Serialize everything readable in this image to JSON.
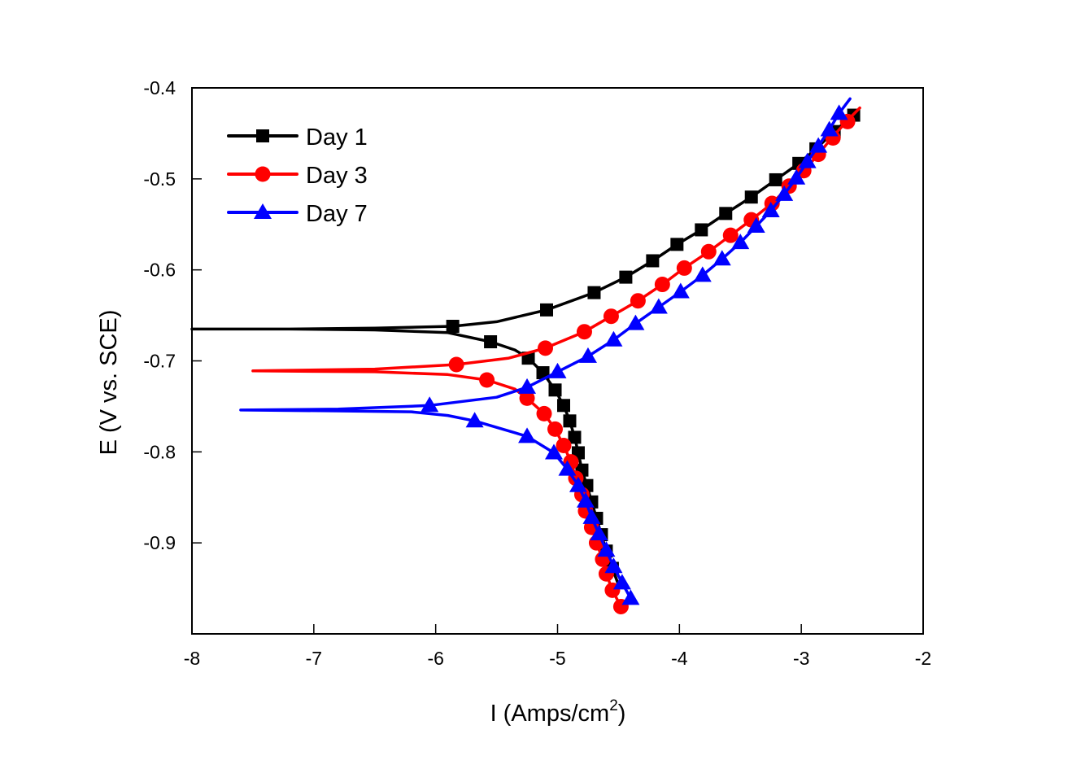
{
  "chart_data": {
    "type": "line",
    "title": "",
    "xlabel": "I (Amps/cm",
    "xlabel_superscript": "2",
    "xlabel_suffix": ")",
    "ylabel": "E (V vs. SCE)",
    "xlim": [
      -8,
      -2
    ],
    "ylim": [
      -1.0,
      -0.4
    ],
    "xticks": [
      -8,
      -7,
      -6,
      -5,
      -4,
      -3,
      -2
    ],
    "xtick_labels": [
      "-8",
      "-7",
      "-6",
      "-5",
      "-4",
      "-3",
      "-2"
    ],
    "yticks": [
      -0.4,
      -0.5,
      -0.6,
      -0.7,
      -0.8,
      -0.9
    ],
    "ytick_labels": [
      "-0.4",
      "-0.5",
      "-0.6",
      "-0.7",
      "-0.8",
      "-0.9"
    ],
    "grid": false,
    "legend_position": "top-left",
    "series": [
      {
        "name": "Day 1",
        "color": "#000000",
        "marker": "square",
        "line": [
          [
            -2.55,
            -0.427
          ],
          [
            -2.73,
            -0.448
          ],
          [
            -2.88,
            -0.467
          ],
          [
            -3.02,
            -0.483
          ],
          [
            -3.21,
            -0.501
          ],
          [
            -3.41,
            -0.52
          ],
          [
            -3.62,
            -0.538
          ],
          [
            -3.82,
            -0.556
          ],
          [
            -4.02,
            -0.572
          ],
          [
            -4.22,
            -0.59
          ],
          [
            -4.44,
            -0.608
          ],
          [
            -4.7,
            -0.625
          ],
          [
            -5.09,
            -0.644
          ],
          [
            -5.5,
            -0.657
          ],
          [
            -5.86,
            -0.662
          ],
          [
            -6.5,
            -0.664
          ],
          [
            -7.2,
            -0.665
          ],
          [
            -8.0,
            -0.665
          ],
          [
            -7.2,
            -0.665
          ],
          [
            -6.5,
            -0.666
          ],
          [
            -5.9,
            -0.669
          ],
          [
            -5.55,
            -0.679
          ],
          [
            -5.35,
            -0.688
          ],
          [
            -5.24,
            -0.697
          ],
          [
            -5.12,
            -0.713
          ],
          [
            -5.02,
            -0.732
          ],
          [
            -4.95,
            -0.749
          ],
          [
            -4.9,
            -0.766
          ],
          [
            -4.86,
            -0.784
          ],
          [
            -4.83,
            -0.801
          ],
          [
            -4.8,
            -0.82
          ],
          [
            -4.76,
            -0.837
          ],
          [
            -4.72,
            -0.855
          ],
          [
            -4.68,
            -0.873
          ],
          [
            -4.64,
            -0.891
          ],
          [
            -4.6,
            -0.909
          ],
          [
            -4.55,
            -0.928
          ],
          [
            -4.5,
            -0.946
          ]
        ],
        "markers": [
          [
            -2.57,
            -0.43
          ],
          [
            -2.73,
            -0.448
          ],
          [
            -2.88,
            -0.467
          ],
          [
            -3.02,
            -0.483
          ],
          [
            -3.21,
            -0.501
          ],
          [
            -3.41,
            -0.52
          ],
          [
            -3.62,
            -0.538
          ],
          [
            -3.82,
            -0.556
          ],
          [
            -4.02,
            -0.572
          ],
          [
            -4.22,
            -0.59
          ],
          [
            -4.44,
            -0.608
          ],
          [
            -4.7,
            -0.625
          ],
          [
            -5.09,
            -0.644
          ],
          [
            -5.86,
            -0.662
          ],
          [
            -5.55,
            -0.679
          ],
          [
            -5.24,
            -0.697
          ],
          [
            -5.12,
            -0.713
          ],
          [
            -5.02,
            -0.732
          ],
          [
            -4.95,
            -0.749
          ],
          [
            -4.9,
            -0.766
          ],
          [
            -4.86,
            -0.784
          ],
          [
            -4.83,
            -0.801
          ],
          [
            -4.8,
            -0.82
          ],
          [
            -4.76,
            -0.837
          ],
          [
            -4.72,
            -0.855
          ],
          [
            -4.68,
            -0.873
          ],
          [
            -4.64,
            -0.891
          ],
          [
            -4.6,
            -0.909
          ],
          [
            -4.55,
            -0.928
          ]
        ]
      },
      {
        "name": "Day 3",
        "color": "#ff0000",
        "marker": "circle",
        "line": [
          [
            -2.52,
            -0.422
          ],
          [
            -2.63,
            -0.437
          ],
          [
            -2.75,
            -0.455
          ],
          [
            -2.86,
            -0.473
          ],
          [
            -2.98,
            -0.491
          ],
          [
            -3.1,
            -0.508
          ],
          [
            -3.24,
            -0.527
          ],
          [
            -3.41,
            -0.545
          ],
          [
            -3.58,
            -0.562
          ],
          [
            -3.76,
            -0.58
          ],
          [
            -3.96,
            -0.598
          ],
          [
            -4.14,
            -0.616
          ],
          [
            -4.34,
            -0.634
          ],
          [
            -4.56,
            -0.651
          ],
          [
            -4.78,
            -0.668
          ],
          [
            -5.1,
            -0.686
          ],
          [
            -5.4,
            -0.697
          ],
          [
            -5.83,
            -0.704
          ],
          [
            -6.5,
            -0.709
          ],
          [
            -7.5,
            -0.711
          ],
          [
            -6.5,
            -0.712
          ],
          [
            -5.9,
            -0.715
          ],
          [
            -5.58,
            -0.721
          ],
          [
            -5.35,
            -0.731
          ],
          [
            -5.25,
            -0.741
          ],
          [
            -5.11,
            -0.758
          ],
          [
            -5.02,
            -0.775
          ],
          [
            -4.95,
            -0.793
          ],
          [
            -4.89,
            -0.811
          ],
          [
            -4.85,
            -0.829
          ],
          [
            -4.8,
            -0.847
          ],
          [
            -4.77,
            -0.865
          ],
          [
            -4.72,
            -0.883
          ],
          [
            -4.68,
            -0.9
          ],
          [
            -4.63,
            -0.918
          ],
          [
            -4.6,
            -0.934
          ],
          [
            -4.55,
            -0.952
          ],
          [
            -4.48,
            -0.97
          ]
        ],
        "markers": [
          [
            -2.62,
            -0.437
          ],
          [
            -2.74,
            -0.455
          ],
          [
            -2.86,
            -0.473
          ],
          [
            -2.98,
            -0.491
          ],
          [
            -3.1,
            -0.508
          ],
          [
            -3.24,
            -0.527
          ],
          [
            -3.41,
            -0.545
          ],
          [
            -3.58,
            -0.562
          ],
          [
            -3.76,
            -0.58
          ],
          [
            -3.96,
            -0.598
          ],
          [
            -4.14,
            -0.616
          ],
          [
            -4.34,
            -0.634
          ],
          [
            -4.56,
            -0.651
          ],
          [
            -4.78,
            -0.668
          ],
          [
            -5.1,
            -0.686
          ],
          [
            -5.83,
            -0.704
          ],
          [
            -5.58,
            -0.721
          ],
          [
            -5.25,
            -0.741
          ],
          [
            -5.11,
            -0.758
          ],
          [
            -5.02,
            -0.775
          ],
          [
            -4.95,
            -0.793
          ],
          [
            -4.89,
            -0.811
          ],
          [
            -4.85,
            -0.829
          ],
          [
            -4.8,
            -0.847
          ],
          [
            -4.77,
            -0.865
          ],
          [
            -4.72,
            -0.883
          ],
          [
            -4.68,
            -0.9
          ],
          [
            -4.63,
            -0.918
          ],
          [
            -4.6,
            -0.934
          ],
          [
            -4.55,
            -0.952
          ],
          [
            -4.48,
            -0.97
          ]
        ]
      },
      {
        "name": "Day 7",
        "color": "#0000ff",
        "marker": "triangle",
        "line": [
          [
            -2.6,
            -0.412
          ],
          [
            -2.69,
            -0.428
          ],
          [
            -2.77,
            -0.446
          ],
          [
            -2.86,
            -0.464
          ],
          [
            -2.95,
            -0.481
          ],
          [
            -3.04,
            -0.499
          ],
          [
            -3.14,
            -0.517
          ],
          [
            -3.25,
            -0.535
          ],
          [
            -3.37,
            -0.552
          ],
          [
            -3.5,
            -0.57
          ],
          [
            -3.65,
            -0.588
          ],
          [
            -3.81,
            -0.606
          ],
          [
            -3.99,
            -0.624
          ],
          [
            -4.17,
            -0.641
          ],
          [
            -4.36,
            -0.659
          ],
          [
            -4.54,
            -0.677
          ],
          [
            -4.75,
            -0.695
          ],
          [
            -5.0,
            -0.712
          ],
          [
            -5.25,
            -0.729
          ],
          [
            -5.5,
            -0.74
          ],
          [
            -6.05,
            -0.749
          ],
          [
            -6.8,
            -0.753
          ],
          [
            -7.6,
            -0.754
          ],
          [
            -6.8,
            -0.755
          ],
          [
            -6.2,
            -0.756
          ],
          [
            -5.9,
            -0.76
          ],
          [
            -5.68,
            -0.766
          ],
          [
            -5.45,
            -0.775
          ],
          [
            -5.25,
            -0.783
          ],
          [
            -5.03,
            -0.801
          ],
          [
            -4.92,
            -0.819
          ],
          [
            -4.83,
            -0.837
          ],
          [
            -4.77,
            -0.854
          ],
          [
            -4.72,
            -0.872
          ],
          [
            -4.66,
            -0.89
          ],
          [
            -4.6,
            -0.908
          ],
          [
            -4.54,
            -0.926
          ],
          [
            -4.47,
            -0.944
          ],
          [
            -4.4,
            -0.961
          ]
        ],
        "markers": [
          [
            -2.69,
            -0.428
          ],
          [
            -2.77,
            -0.446
          ],
          [
            -2.86,
            -0.464
          ],
          [
            -2.95,
            -0.481
          ],
          [
            -3.04,
            -0.499
          ],
          [
            -3.14,
            -0.517
          ],
          [
            -3.25,
            -0.535
          ],
          [
            -3.37,
            -0.552
          ],
          [
            -3.5,
            -0.57
          ],
          [
            -3.65,
            -0.588
          ],
          [
            -3.81,
            -0.606
          ],
          [
            -3.99,
            -0.624
          ],
          [
            -4.17,
            -0.641
          ],
          [
            -4.36,
            -0.659
          ],
          [
            -4.54,
            -0.677
          ],
          [
            -4.75,
            -0.695
          ],
          [
            -5.0,
            -0.712
          ],
          [
            -5.25,
            -0.729
          ],
          [
            -6.05,
            -0.749
          ],
          [
            -5.68,
            -0.766
          ],
          [
            -5.25,
            -0.783
          ],
          [
            -5.03,
            -0.801
          ],
          [
            -4.92,
            -0.819
          ],
          [
            -4.83,
            -0.837
          ],
          [
            -4.77,
            -0.854
          ],
          [
            -4.72,
            -0.872
          ],
          [
            -4.66,
            -0.89
          ],
          [
            -4.6,
            -0.908
          ],
          [
            -4.54,
            -0.926
          ],
          [
            -4.47,
            -0.944
          ],
          [
            -4.4,
            -0.961
          ]
        ]
      }
    ]
  }
}
